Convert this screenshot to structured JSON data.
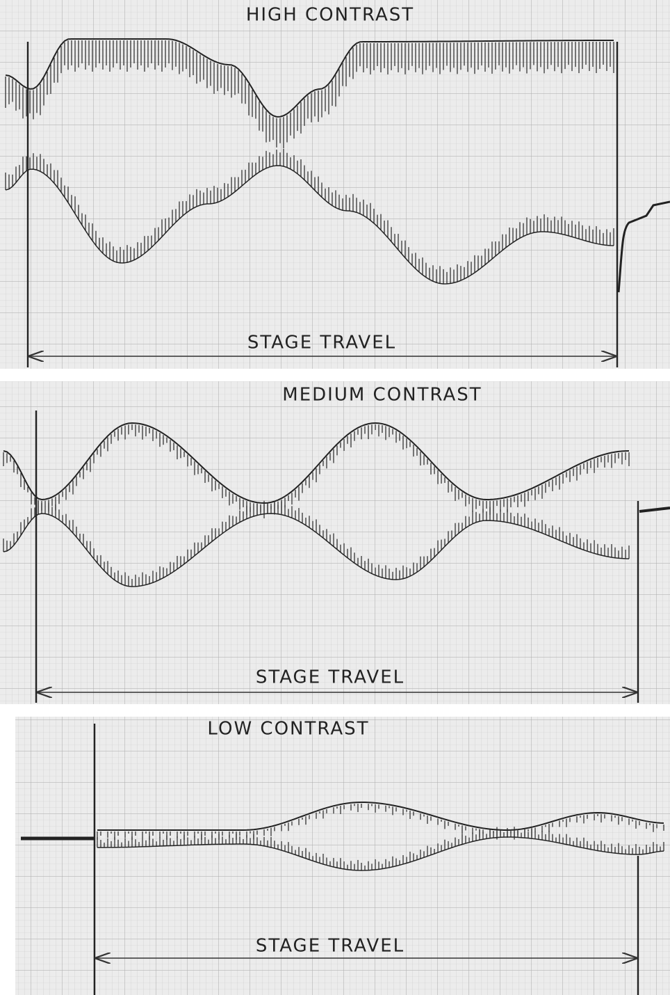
{
  "panels": [
    {
      "title": "HIGH CONTRAST",
      "travel_label": "STAGE TRAVEL"
    },
    {
      "title": "MEDIUM CONTRAST",
      "travel_label": "STAGE TRAVEL"
    },
    {
      "title": "LOW CONTRAST",
      "travel_label": "STAGE TRAVEL"
    }
  ]
}
